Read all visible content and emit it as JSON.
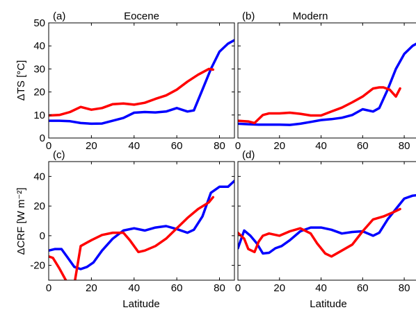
{
  "figure": {
    "xlabel": "Latitude",
    "ylabel_top": "ΔTS [°C]",
    "ylabel_bottom": "ΔCRF [W m⁻²]",
    "colors": {
      "blue": "#0000ff",
      "red": "#ff0000",
      "axes": "#000000"
    }
  },
  "chart_data": [
    {
      "type": "line",
      "panel_label": "(a)",
      "title": "Eocene",
      "xlim": [
        0,
        87
      ],
      "ylim": [
        0,
        50
      ],
      "xticks": [
        0,
        20,
        40,
        60,
        80
      ],
      "yticks": [
        0,
        10,
        20,
        30,
        40,
        50
      ],
      "grid": false,
      "series": [
        {
          "color": "#0000ff",
          "x": [
            0,
            5,
            10,
            15,
            20,
            25,
            30,
            35,
            40,
            45,
            50,
            55,
            60,
            65,
            68,
            72,
            76,
            80,
            84,
            87
          ],
          "y": [
            7.5,
            7.5,
            7.3,
            6.5,
            6.2,
            6.3,
            7.5,
            8.7,
            11,
            11.3,
            11.1,
            11.5,
            13,
            11.5,
            12,
            21,
            30,
            37.5,
            41,
            42.5
          ]
        },
        {
          "color": "#ff0000",
          "x": [
            0,
            5,
            10,
            15,
            20,
            25,
            30,
            35,
            40,
            45,
            50,
            55,
            60,
            65,
            70,
            75,
            77
          ],
          "y": [
            9.8,
            10,
            11.3,
            13.5,
            12.3,
            13,
            14.7,
            15,
            14.5,
            15.3,
            17,
            18.5,
            21,
            24.5,
            27.5,
            30,
            29.7
          ]
        }
      ]
    },
    {
      "type": "line",
      "panel_label": "(b)",
      "title": "Modern",
      "xlim": [
        0,
        87
      ],
      "ylim": [
        0,
        50
      ],
      "xticks": [
        0,
        20,
        40,
        60,
        80
      ],
      "yticks": [
        0,
        10,
        20,
        30,
        40,
        50
      ],
      "grid": false,
      "series": [
        {
          "color": "#0000ff",
          "x": [
            0,
            5,
            10,
            15,
            20,
            25,
            30,
            35,
            40,
            45,
            50,
            55,
            60,
            65,
            68,
            72,
            76,
            80,
            84,
            87
          ],
          "y": [
            6.2,
            6,
            5.8,
            5.8,
            5.8,
            5.7,
            6.2,
            7,
            7.8,
            8.2,
            8.8,
            10,
            12.5,
            11.5,
            13,
            21,
            30,
            36.5,
            40,
            41.5
          ]
        },
        {
          "color": "#ff0000",
          "x": [
            0,
            5,
            8,
            12,
            15,
            20,
            25,
            30,
            35,
            40,
            45,
            50,
            55,
            60,
            65,
            68,
            70,
            73,
            76,
            78
          ],
          "y": [
            7.5,
            7.2,
            6.5,
            10,
            10.7,
            10.7,
            11,
            10.5,
            9.8,
            9.8,
            11.5,
            13.2,
            15.5,
            18,
            21.5,
            22,
            22,
            21,
            18,
            21.5
          ]
        }
      ]
    },
    {
      "type": "line",
      "panel_label": "(c)",
      "title": "",
      "xlim": [
        0,
        87
      ],
      "ylim": [
        -30,
        50
      ],
      "xticks": [
        0,
        20,
        40,
        60,
        80
      ],
      "yticks": [
        -20,
        0,
        20,
        40
      ],
      "grid": false,
      "series": [
        {
          "color": "#0000ff",
          "x": [
            0,
            3,
            6,
            9,
            12,
            15,
            18,
            21,
            25,
            30,
            35,
            40,
            45,
            50,
            55,
            60,
            65,
            68,
            72,
            76,
            80,
            84,
            87
          ],
          "y": [
            -10,
            -9,
            -9,
            -15,
            -21,
            -22.5,
            -21,
            -18,
            -10,
            -2,
            3.5,
            5,
            3.5,
            5.5,
            6.5,
            4.5,
            2,
            4,
            13,
            29,
            33,
            33,
            37
          ]
        },
        {
          "color": "#ff0000",
          "x": [
            0,
            2,
            5,
            8,
            10,
            12,
            15,
            20,
            25,
            30,
            35,
            38,
            42,
            45,
            50,
            55,
            60,
            65,
            70,
            75,
            77
          ],
          "y": [
            -14,
            -15,
            -22,
            -30,
            -34,
            -33,
            -7,
            -3,
            0.5,
            2,
            2,
            -3,
            -11,
            -10,
            -7,
            -2,
            5,
            12,
            18,
            22.5,
            26
          ]
        }
      ]
    },
    {
      "type": "line",
      "panel_label": "(d)",
      "title": "",
      "xlim": [
        0,
        87
      ],
      "ylim": [
        -30,
        50
      ],
      "xticks": [
        0,
        20,
        40,
        60,
        80
      ],
      "yticks": [
        -20,
        0,
        20,
        40
      ],
      "grid": false,
      "series": [
        {
          "color": "#0000ff",
          "x": [
            0,
            3,
            6,
            9,
            12,
            15,
            18,
            21,
            25,
            30,
            35,
            40,
            45,
            50,
            55,
            60,
            65,
            68,
            72,
            76,
            80,
            84,
            87
          ],
          "y": [
            -8.5,
            3.5,
            0,
            -5,
            -12,
            -11.5,
            -8.5,
            -7,
            -3,
            3,
            5.5,
            5.5,
            4,
            1.5,
            2.5,
            3,
            0,
            2,
            11,
            18,
            25,
            27,
            27.5
          ]
        },
        {
          "color": "#ff0000",
          "x": [
            0,
            3,
            5,
            8,
            10,
            12,
            15,
            20,
            25,
            30,
            35,
            38,
            42,
            45,
            50,
            55,
            60,
            65,
            70,
            75,
            78
          ],
          "y": [
            2,
            -2,
            -9,
            -11,
            -4,
            0,
            1.5,
            0,
            3,
            5,
            1.5,
            -5,
            -12,
            -14,
            -10,
            -6,
            3,
            11,
            13,
            16,
            18
          ]
        }
      ]
    }
  ]
}
